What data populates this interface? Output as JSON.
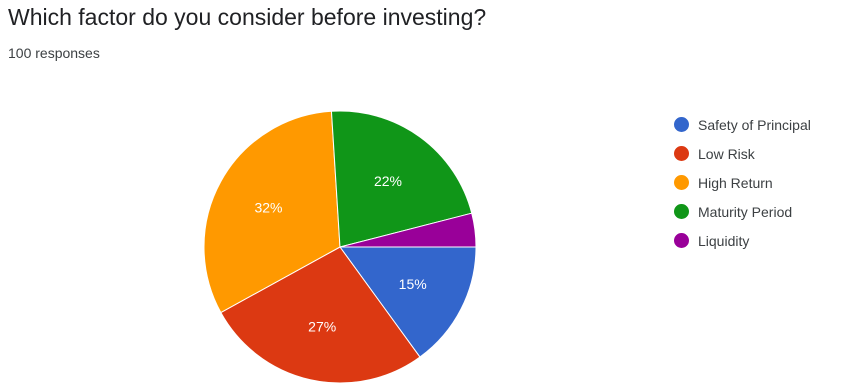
{
  "question": {
    "title": "Which factor do you consider before investing?",
    "responses": "100 responses"
  },
  "chart_data": {
    "type": "pie",
    "title": "Which factor do you consider before investing?",
    "categories": [
      "Safety of Principal",
      "Low Risk",
      "High Return",
      "Maturity Period",
      "Liquidity"
    ],
    "values": [
      15,
      27,
      32,
      22,
      4
    ],
    "labels": [
      "15%",
      "27%",
      "32%",
      "22%",
      ""
    ],
    "colors": [
      "#3366cc",
      "#dc3912",
      "#ff9900",
      "#109618",
      "#990099"
    ],
    "legend_position": "right"
  }
}
